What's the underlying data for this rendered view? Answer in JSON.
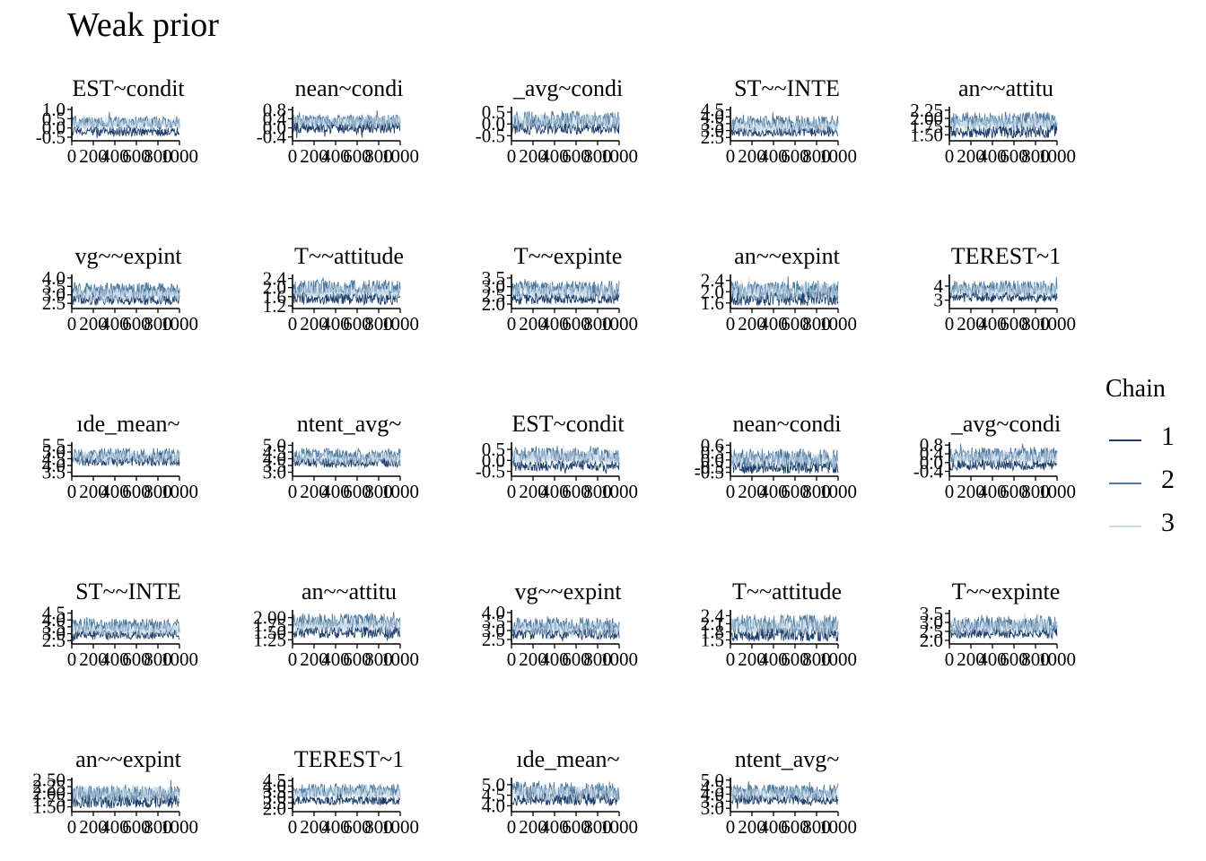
{
  "title": "Weak prior",
  "legend": {
    "title": "Chain",
    "items": [
      {
        "label": "1",
        "color": "#1c3e6b"
      },
      {
        "label": "2",
        "color": "#4f7aa0"
      },
      {
        "label": "3",
        "color": "#c6d9e8"
      }
    ]
  },
  "chart_data": [
    {
      "type": "line",
      "title": "EST~condit",
      "xlim": [
        0,
        1000
      ],
      "x_ticks": [
        "0",
        "200",
        "400",
        "600",
        "800",
        "1000"
      ],
      "y_ticks": [
        "-0.5",
        "0.0",
        "0.5",
        "1.0"
      ],
      "ylim": [
        -0.55,
        1.05
      ],
      "bands": [
        {
          "chain": "1",
          "center": -0.2,
          "spread": 0.25
        },
        {
          "chain": "2",
          "center": 0.3,
          "spread": 0.35
        },
        {
          "chain": "3",
          "center": 0.2,
          "spread": 0.3
        }
      ]
    },
    {
      "type": "line",
      "title": "nean~condi",
      "xlim": [
        0,
        1000
      ],
      "x_ticks": [
        "0",
        "200",
        "400",
        "600",
        "800",
        "1000"
      ],
      "y_ticks": [
        "-0.4",
        "0.0",
        "0.4",
        "0.8"
      ],
      "ylim": [
        -0.45,
        0.85
      ],
      "bands": [
        {
          "chain": "1",
          "center": 0.0,
          "spread": 0.25
        },
        {
          "chain": "2",
          "center": 0.3,
          "spread": 0.3
        },
        {
          "chain": "3",
          "center": 0.25,
          "spread": 0.25
        }
      ]
    },
    {
      "type": "line",
      "title": "_avg~condi",
      "xlim": [
        0,
        1000
      ],
      "x_ticks": [
        "0",
        "200",
        "400",
        "600",
        "800",
        "1000"
      ],
      "y_ticks": [
        "-0.5",
        "0.0",
        "0.5"
      ],
      "ylim": [
        -0.6,
        0.65
      ],
      "bands": [
        {
          "chain": "1",
          "center": -0.2,
          "spread": 0.25
        },
        {
          "chain": "2",
          "center": 0.2,
          "spread": 0.35
        },
        {
          "chain": "3",
          "center": 0.1,
          "spread": 0.3
        }
      ]
    },
    {
      "type": "line",
      "title": "ST~~INTE",
      "xlim": [
        0,
        1000
      ],
      "x_ticks": [
        "0",
        "200",
        "400",
        "600",
        "800",
        "1000"
      ],
      "y_ticks": [
        "2.5",
        "3.0",
        "3.5",
        "4.0",
        "4.5"
      ],
      "ylim": [
        2.45,
        4.6
      ],
      "bands": [
        {
          "chain": "1",
          "center": 2.9,
          "spread": 0.35
        },
        {
          "chain": "2",
          "center": 3.6,
          "spread": 0.5
        },
        {
          "chain": "3",
          "center": 3.3,
          "spread": 0.45
        }
      ]
    },
    {
      "type": "line",
      "title": "an~~attitu",
      "xlim": [
        0,
        1000
      ],
      "x_ticks": [
        "0",
        "200",
        "400",
        "600",
        "800",
        "1000"
      ],
      "y_ticks": [
        "1.50",
        "1.75",
        "2.00",
        "2.25"
      ],
      "ylim": [
        1.4,
        2.3
      ],
      "bands": [
        {
          "chain": "1",
          "center": 1.6,
          "spread": 0.2
        },
        {
          "chain": "2",
          "center": 1.95,
          "spread": 0.25
        },
        {
          "chain": "3",
          "center": 1.85,
          "spread": 0.2
        }
      ]
    },
    {
      "type": "line",
      "title": "vg~~expint",
      "xlim": [
        0,
        1000
      ],
      "x_ticks": [
        "0",
        "200",
        "400",
        "600",
        "800",
        "1000"
      ],
      "y_ticks": [
        "2.5",
        "3.0",
        "3.5",
        "4.0"
      ],
      "ylim": [
        2.35,
        4.1
      ],
      "bands": [
        {
          "chain": "1",
          "center": 2.7,
          "spread": 0.3
        },
        {
          "chain": "2",
          "center": 3.3,
          "spread": 0.45
        },
        {
          "chain": "3",
          "center": 3.0,
          "spread": 0.4
        }
      ]
    },
    {
      "type": "line",
      "title": "T~~attitude",
      "xlim": [
        0,
        1000
      ],
      "x_ticks": [
        "0",
        "200",
        "400",
        "600",
        "800",
        "1000"
      ],
      "y_ticks": [
        "1.2",
        "1.6",
        "2.0",
        "2.4"
      ],
      "ylim": [
        1.2,
        2.5
      ],
      "bands": [
        {
          "chain": "1",
          "center": 1.5,
          "spread": 0.25
        },
        {
          "chain": "2",
          "center": 2.0,
          "spread": 0.35
        },
        {
          "chain": "3",
          "center": 1.85,
          "spread": 0.3
        }
      ]
    },
    {
      "type": "line",
      "title": "T~~expinte",
      "xlim": [
        0,
        1000
      ],
      "x_ticks": [
        "0",
        "200",
        "400",
        "600",
        "800",
        "1000"
      ],
      "y_ticks": [
        "2.0",
        "2.5",
        "3.0",
        "3.5"
      ],
      "ylim": [
        1.9,
        3.6
      ],
      "bands": [
        {
          "chain": "1",
          "center": 2.3,
          "spread": 0.3
        },
        {
          "chain": "2",
          "center": 2.9,
          "spread": 0.45
        },
        {
          "chain": "3",
          "center": 2.7,
          "spread": 0.4
        }
      ]
    },
    {
      "type": "line",
      "title": "an~~expint",
      "xlim": [
        0,
        1000
      ],
      "x_ticks": [
        "0",
        "200",
        "400",
        "600",
        "800",
        "1000"
      ],
      "y_ticks": [
        "1.6",
        "2.0",
        "2.4"
      ],
      "ylim": [
        1.5,
        2.55
      ],
      "bands": [
        {
          "chain": "1",
          "center": 1.75,
          "spread": 0.25
        },
        {
          "chain": "2",
          "center": 2.1,
          "spread": 0.3
        },
        {
          "chain": "3",
          "center": 2.0,
          "spread": 0.3
        }
      ]
    },
    {
      "type": "line",
      "title": "TEREST~1",
      "xlim": [
        0,
        1000
      ],
      "x_ticks": [
        "0",
        "200",
        "400",
        "600",
        "800",
        "1000"
      ],
      "y_ticks": [
        "3",
        "4"
      ],
      "ylim": [
        2.6,
        4.7
      ],
      "bands": [
        {
          "chain": "1",
          "center": 3.2,
          "spread": 0.35
        },
        {
          "chain": "2",
          "center": 3.9,
          "spread": 0.5
        },
        {
          "chain": "3",
          "center": 3.7,
          "spread": 0.45
        }
      ]
    },
    {
      "type": "line",
      "title": "ıde_mean~",
      "xlim": [
        0,
        1000
      ],
      "x_ticks": [
        "0",
        "200",
        "400",
        "600",
        "800",
        "1000"
      ],
      "y_ticks": [
        "3.5",
        "4.0",
        "4.5",
        "5.0",
        "5.5"
      ],
      "ylim": [
        3.4,
        5.6
      ],
      "bands": [
        {
          "chain": "1",
          "center": 4.3,
          "spread": 0.35
        },
        {
          "chain": "2",
          "center": 4.8,
          "spread": 0.5
        },
        {
          "chain": "3",
          "center": 4.6,
          "spread": 0.45
        }
      ]
    },
    {
      "type": "line",
      "title": "ntent_avg~",
      "xlim": [
        0,
        1000
      ],
      "x_ticks": [
        "0",
        "200",
        "400",
        "600",
        "800",
        "1000"
      ],
      "y_ticks": [
        "3.0",
        "3.5",
        "4.0",
        "4.5",
        "5.0"
      ],
      "ylim": [
        2.9,
        5.1
      ],
      "bands": [
        {
          "chain": "1",
          "center": 3.7,
          "spread": 0.35
        },
        {
          "chain": "2",
          "center": 4.3,
          "spread": 0.5
        },
        {
          "chain": "3",
          "center": 4.0,
          "spread": 0.45
        }
      ]
    },
    {
      "type": "line",
      "title": "EST~condit",
      "xlim": [
        0,
        1000
      ],
      "x_ticks": [
        "0",
        "200",
        "400",
        "600",
        "800",
        "1000"
      ],
      "y_ticks": [
        "-0.5",
        "0.0",
        "0.5"
      ],
      "ylim": [
        -0.6,
        0.75
      ],
      "bands": [
        {
          "chain": "1",
          "center": -0.25,
          "spread": 0.25
        },
        {
          "chain": "2",
          "center": 0.25,
          "spread": 0.35
        },
        {
          "chain": "3",
          "center": 0.15,
          "spread": 0.3
        }
      ]
    },
    {
      "type": "line",
      "title": "nean~condi",
      "xlim": [
        0,
        1000
      ],
      "x_ticks": [
        "0",
        "200",
        "400",
        "600",
        "800",
        "1000"
      ],
      "y_ticks": [
        "-0.5",
        "-0.3",
        "0.0",
        "0.3",
        "0.6"
      ],
      "ylim": [
        -0.55,
        0.65
      ],
      "bands": [
        {
          "chain": "1",
          "center": -0.3,
          "spread": 0.25
        },
        {
          "chain": "2",
          "center": 0.1,
          "spread": 0.35
        },
        {
          "chain": "3",
          "center": 0.0,
          "spread": 0.3
        }
      ]
    },
    {
      "type": "line",
      "title": "_avg~condi",
      "xlim": [
        0,
        1000
      ],
      "x_ticks": [
        "0",
        "200",
        "400",
        "600",
        "800",
        "1000"
      ],
      "y_ticks": [
        "-0.4",
        "0.0",
        "0.4",
        "0.8"
      ],
      "ylim": [
        -0.5,
        0.85
      ],
      "bands": [
        {
          "chain": "1",
          "center": -0.1,
          "spread": 0.25
        },
        {
          "chain": "2",
          "center": 0.35,
          "spread": 0.35
        },
        {
          "chain": "3",
          "center": 0.25,
          "spread": 0.3
        }
      ]
    },
    {
      "type": "line",
      "title": "ST~~INTE",
      "xlim": [
        0,
        1000
      ],
      "x_ticks": [
        "0",
        "200",
        "400",
        "600",
        "800",
        "1000"
      ],
      "y_ticks": [
        "2.5",
        "3.0",
        "3.5",
        "4.0",
        "4.5"
      ],
      "ylim": [
        2.45,
        4.6
      ],
      "bands": [
        {
          "chain": "1",
          "center": 2.9,
          "spread": 0.35
        },
        {
          "chain": "2",
          "center": 3.6,
          "spread": 0.5
        },
        {
          "chain": "3",
          "center": 3.3,
          "spread": 0.45
        }
      ]
    },
    {
      "type": "line",
      "title": "an~~attitu",
      "xlim": [
        0,
        1000
      ],
      "x_ticks": [
        "0",
        "200",
        "400",
        "600",
        "800",
        "1000"
      ],
      "y_ticks": [
        "1.25",
        "1.50",
        "1.75",
        "2.00"
      ],
      "ylim": [
        1.2,
        2.2
      ],
      "bands": [
        {
          "chain": "1",
          "center": 1.5,
          "spread": 0.2
        },
        {
          "chain": "2",
          "center": 1.9,
          "spread": 0.25
        },
        {
          "chain": "3",
          "center": 1.75,
          "spread": 0.22
        }
      ]
    },
    {
      "type": "line",
      "title": "vg~~expint",
      "xlim": [
        0,
        1000
      ],
      "x_ticks": [
        "0",
        "200",
        "400",
        "600",
        "800",
        "1000"
      ],
      "y_ticks": [
        "2.5",
        "3.0",
        "3.5",
        "4.0"
      ],
      "ylim": [
        2.4,
        4.05
      ],
      "bands": [
        {
          "chain": "1",
          "center": 2.8,
          "spread": 0.3
        },
        {
          "chain": "2",
          "center": 3.3,
          "spread": 0.45
        },
        {
          "chain": "3",
          "center": 3.1,
          "spread": 0.4
        }
      ]
    },
    {
      "type": "line",
      "title": "T~~attitude",
      "xlim": [
        0,
        1000
      ],
      "x_ticks": [
        "0",
        "200",
        "400",
        "600",
        "800",
        "1000"
      ],
      "y_ticks": [
        "1.5",
        "1.8",
        "2.1",
        "2.4"
      ],
      "ylim": [
        1.45,
        2.55
      ],
      "bands": [
        {
          "chain": "1",
          "center": 1.7,
          "spread": 0.25
        },
        {
          "chain": "2",
          "center": 2.1,
          "spread": 0.35
        },
        {
          "chain": "3",
          "center": 2.0,
          "spread": 0.3
        }
      ]
    },
    {
      "type": "line",
      "title": "T~~expinte",
      "xlim": [
        0,
        1000
      ],
      "x_ticks": [
        "0",
        "200",
        "400",
        "600",
        "800",
        "1000"
      ],
      "y_ticks": [
        "2.0",
        "2.5",
        "3.0",
        "3.5"
      ],
      "ylim": [
        1.95,
        3.6
      ],
      "bands": [
        {
          "chain": "1",
          "center": 2.4,
          "spread": 0.3
        },
        {
          "chain": "2",
          "center": 2.9,
          "spread": 0.45
        },
        {
          "chain": "3",
          "center": 2.75,
          "spread": 0.4
        }
      ]
    },
    {
      "type": "line",
      "title": "an~~expint",
      "xlim": [
        0,
        1000
      ],
      "x_ticks": [
        "0",
        "200",
        "400",
        "600",
        "800",
        "1000"
      ],
      "y_ticks": [
        "1.50",
        "1.75",
        "2.00",
        "2.25",
        "2.50"
      ],
      "ylim": [
        1.42,
        2.52
      ],
      "bands": [
        {
          "chain": "1",
          "center": 1.7,
          "spread": 0.25
        },
        {
          "chain": "2",
          "center": 2.0,
          "spread": 0.3
        },
        {
          "chain": "3",
          "center": 1.95,
          "spread": 0.3
        }
      ]
    },
    {
      "type": "line",
      "title": "TEREST~1",
      "xlim": [
        0,
        1000
      ],
      "x_ticks": [
        "0",
        "200",
        "400",
        "600",
        "800",
        "1000"
      ],
      "y_ticks": [
        "2.0",
        "2.5",
        "3.0",
        "3.5",
        "4.0",
        "4.5"
      ],
      "ylim": [
        1.95,
        4.6
      ],
      "bands": [
        {
          "chain": "1",
          "center": 2.7,
          "spread": 0.4
        },
        {
          "chain": "2",
          "center": 3.6,
          "spread": 0.6
        },
        {
          "chain": "3",
          "center": 3.4,
          "spread": 0.5
        }
      ]
    },
    {
      "type": "line",
      "title": "ıde_mean~",
      "xlim": [
        0,
        1000
      ],
      "x_ticks": [
        "0",
        "200",
        "400",
        "600",
        "800",
        "1000"
      ],
      "y_ticks": [
        "4.0",
        "4.5",
        "5.0"
      ],
      "ylim": [
        3.85,
        5.25
      ],
      "bands": [
        {
          "chain": "1",
          "center": 4.3,
          "spread": 0.3
        },
        {
          "chain": "2",
          "center": 4.75,
          "spread": 0.4
        },
        {
          "chain": "3",
          "center": 4.6,
          "spread": 0.35
        }
      ]
    },
    {
      "type": "line",
      "title": "ntent_avg~",
      "xlim": [
        0,
        1000
      ],
      "x_ticks": [
        "0",
        "200",
        "400",
        "600",
        "800",
        "1000"
      ],
      "y_ticks": [
        "3.0",
        "3.5",
        "4.0",
        "4.5",
        "5.0"
      ],
      "ylim": [
        2.95,
        5.05
      ],
      "bands": [
        {
          "chain": "1",
          "center": 3.6,
          "spread": 0.35
        },
        {
          "chain": "2",
          "center": 4.2,
          "spread": 0.5
        },
        {
          "chain": "3",
          "center": 4.0,
          "spread": 0.45
        }
      ]
    }
  ]
}
